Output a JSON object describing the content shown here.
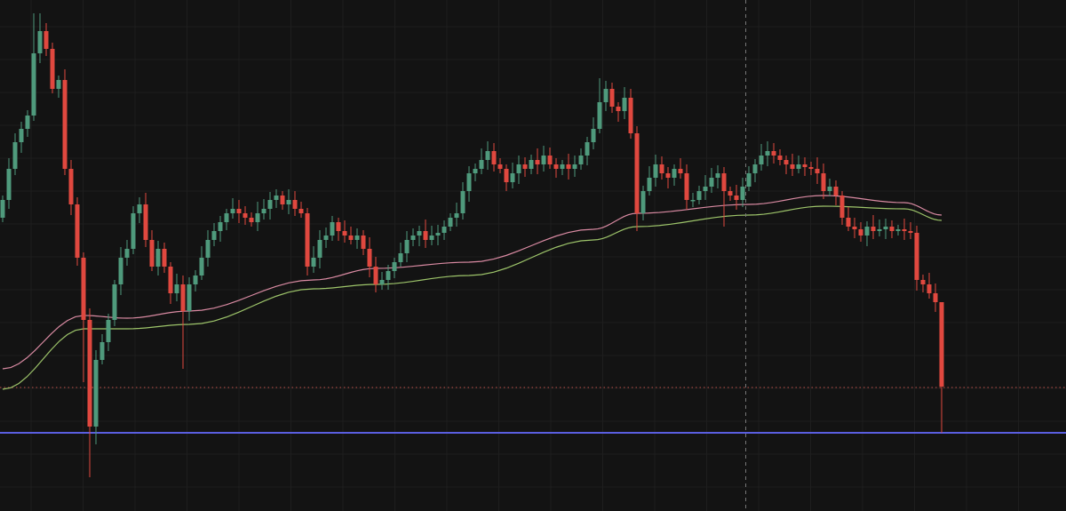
{
  "chart_data": {
    "type": "candlestick",
    "title": "",
    "xlabel": "",
    "ylabel": "",
    "ylim": [
      0,
      600
    ],
    "grid": true,
    "colors": {
      "background": "#131313",
      "grid": "#1e1e1e",
      "up": "#4f9a7c",
      "down": "#e0483f",
      "ma_fast": "#d98aa2",
      "ma_slow": "#9dc46a",
      "support_line": "#5a5ee0",
      "price_line": "#c0504a",
      "crosshair": "#777777"
    },
    "closes": [
      375,
      410,
      440,
      455,
      470,
      540,
      565,
      545,
      500,
      510,
      410,
      370,
      310,
      240,
      120,
      195,
      215,
      240,
      280,
      310,
      320,
      360,
      370,
      330,
      300,
      320,
      300,
      270,
      280,
      250,
      280,
      290,
      310,
      330,
      340,
      350,
      360,
      365,
      360,
      355,
      350,
      360,
      365,
      375,
      380,
      370,
      375,
      365,
      360,
      300,
      310,
      330,
      335,
      350,
      340,
      335,
      330,
      335,
      320,
      300,
      280,
      285,
      295,
      305,
      315,
      330,
      335,
      340,
      330,
      335,
      338,
      345,
      355,
      360,
      385,
      405,
      410,
      420,
      430,
      415,
      410,
      395,
      405,
      415,
      410,
      420,
      415,
      425,
      415,
      410,
      415,
      410,
      415,
      425,
      440,
      455,
      485,
      500,
      480,
      475,
      490,
      450,
      360,
      385,
      400,
      415,
      405,
      400,
      410,
      405,
      375,
      375,
      385,
      390,
      400,
      405,
      385,
      380,
      375,
      390,
      405,
      415,
      425,
      430,
      425,
      420,
      415,
      410,
      415,
      412,
      410,
      405,
      385,
      390,
      380,
      355,
      345,
      342,
      335,
      345,
      340,
      342,
      345,
      340,
      342,
      340,
      338,
      285,
      280,
      270,
      260,
      165
    ],
    "wick_overrides": {
      "5": {
        "high": 585
      },
      "6": {
        "high": 585
      },
      "13": {
        "low": 170
      },
      "14": {
        "low": 63
      },
      "15": {
        "low": 100
      },
      "29": {
        "low": 185
      },
      "22": {
        "high": 378
      },
      "96": {
        "high": 512
      },
      "102": {
        "low": 340
      },
      "116": {
        "low": 345
      },
      "151": {
        "high": 215,
        "low": 113
      }
    },
    "moving_averages": [
      {
        "key": "ma_fast",
        "points": [
          [
            0,
            185
          ],
          [
            13,
            245
          ],
          [
            20,
            242
          ],
          [
            30,
            250
          ],
          [
            50,
            285
          ],
          [
            60,
            298
          ],
          [
            75,
            305
          ],
          [
            95,
            342
          ],
          [
            102,
            360
          ],
          [
            120,
            370
          ],
          [
            132,
            380
          ],
          [
            145,
            372
          ],
          [
            151,
            358
          ]
        ]
      },
      {
        "key": "ma_slow",
        "points": [
          [
            0,
            162
          ],
          [
            13,
            230
          ],
          [
            20,
            230
          ],
          [
            30,
            235
          ],
          [
            50,
            275
          ],
          [
            60,
            280
          ],
          [
            75,
            290
          ],
          [
            95,
            330
          ],
          [
            102,
            345
          ],
          [
            120,
            358
          ],
          [
            132,
            368
          ],
          [
            145,
            365
          ],
          [
            151,
            352
          ]
        ]
      }
    ],
    "horizontal_lines": [
      {
        "key": "support_line",
        "price": 113,
        "style": "solid"
      },
      {
        "key": "price_line",
        "price": 164,
        "style": "dotted"
      }
    ],
    "crosshair_candle": 119.5
  }
}
